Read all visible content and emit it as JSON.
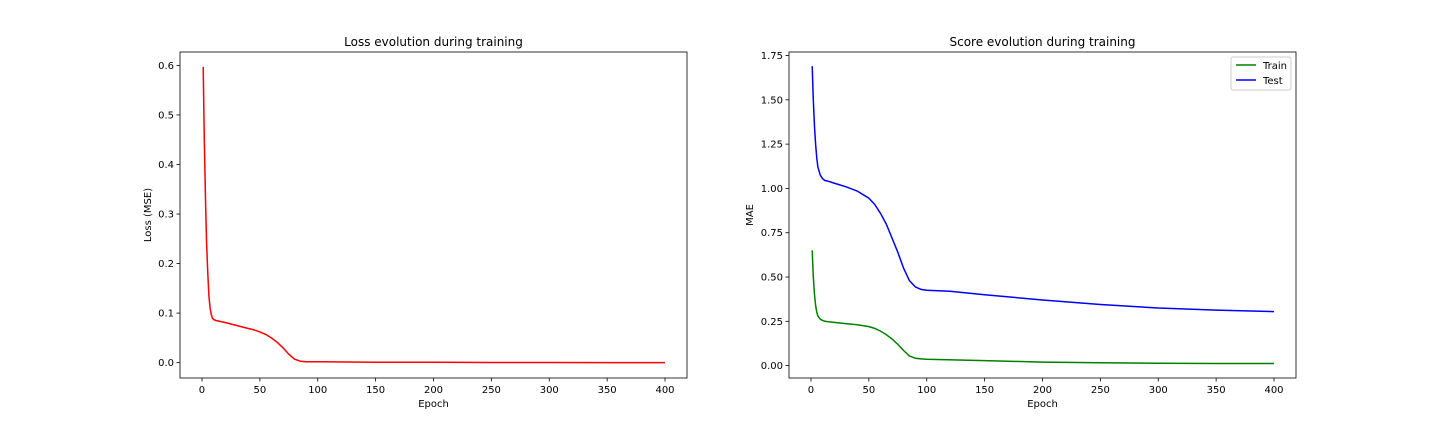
{
  "chart_data": [
    {
      "type": "line",
      "title": "Loss evolution during training",
      "xlabel": "Epoch",
      "ylabel": "Loss (MSE)",
      "xlim": [
        -19,
        419
      ],
      "ylim": [
        -0.031,
        0.627
      ],
      "xticks": [
        0,
        50,
        100,
        150,
        200,
        250,
        300,
        350,
        400
      ],
      "xtick_labels": [
        "0",
        "50",
        "100",
        "150",
        "200",
        "250",
        "300",
        "350",
        "400"
      ],
      "yticks": [
        0.0,
        0.1,
        0.2,
        0.3,
        0.4,
        0.5,
        0.6
      ],
      "ytick_labels": [
        "0.0",
        "0.1",
        "0.2",
        "0.3",
        "0.4",
        "0.5",
        "0.6"
      ],
      "grid": false,
      "legend": null,
      "series": [
        {
          "color": "#ff0000",
          "x": [
            1,
            2,
            3,
            4,
            5,
            6,
            7,
            8,
            9,
            10,
            12,
            14,
            16,
            20,
            25,
            30,
            35,
            40,
            45,
            50,
            55,
            60,
            65,
            70,
            75,
            80,
            85,
            90,
            95,
            100,
            150,
            200,
            250,
            300,
            350,
            400
          ],
          "y": [
            0.597,
            0.45,
            0.33,
            0.24,
            0.18,
            0.135,
            0.11,
            0.097,
            0.09,
            0.087,
            0.085,
            0.084,
            0.083,
            0.081,
            0.078,
            0.075,
            0.072,
            0.069,
            0.066,
            0.062,
            0.057,
            0.05,
            0.041,
            0.03,
            0.017,
            0.007,
            0.003,
            0.002,
            0.0018,
            0.0016,
            0.0009,
            0.0006,
            0.0003,
            0.0002,
            0.0001,
            0.0
          ]
        }
      ]
    },
    {
      "type": "line",
      "title": "Score evolution during training",
      "xlabel": "Epoch",
      "ylabel": "MAE",
      "xlim": [
        -19,
        419
      ],
      "ylim": [
        -0.07,
        1.77
      ],
      "xticks": [
        0,
        50,
        100,
        150,
        200,
        250,
        300,
        350,
        400
      ],
      "xtick_labels": [
        "0",
        "50",
        "100",
        "150",
        "200",
        "250",
        "300",
        "350",
        "400"
      ],
      "yticks": [
        0.0,
        0.25,
        0.5,
        0.75,
        1.0,
        1.25,
        1.5,
        1.75
      ],
      "ytick_labels": [
        "0.00",
        "0.25",
        "0.50",
        "0.75",
        "1.00",
        "1.25",
        "1.50",
        "1.75"
      ],
      "grid": false,
      "legend": "top-right",
      "series": [
        {
          "name": "Train",
          "color": "#008000",
          "x": [
            1,
            2,
            3,
            4,
            5,
            6,
            8,
            10,
            12,
            15,
            20,
            30,
            40,
            50,
            55,
            60,
            65,
            70,
            75,
            80,
            85,
            90,
            95,
            100,
            150,
            200,
            250,
            300,
            350,
            400
          ],
          "y": [
            0.65,
            0.5,
            0.4,
            0.34,
            0.3,
            0.28,
            0.262,
            0.255,
            0.25,
            0.247,
            0.244,
            0.237,
            0.23,
            0.22,
            0.21,
            0.195,
            0.175,
            0.15,
            0.12,
            0.085,
            0.055,
            0.042,
            0.038,
            0.036,
            0.028,
            0.02,
            0.016,
            0.013,
            0.012,
            0.012
          ]
        },
        {
          "name": "Test",
          "color": "#0000ff",
          "x": [
            1,
            2,
            3,
            4,
            5,
            6,
            8,
            10,
            12,
            15,
            20,
            30,
            40,
            50,
            55,
            60,
            65,
            70,
            75,
            80,
            85,
            90,
            95,
            100,
            120,
            150,
            200,
            250,
            300,
            350,
            400
          ],
          "y": [
            1.69,
            1.5,
            1.35,
            1.25,
            1.17,
            1.12,
            1.075,
            1.055,
            1.045,
            1.04,
            1.03,
            1.01,
            0.985,
            0.945,
            0.91,
            0.86,
            0.8,
            0.72,
            0.64,
            0.55,
            0.48,
            0.445,
            0.43,
            0.425,
            0.42,
            0.4,
            0.37,
            0.345,
            0.325,
            0.313,
            0.305
          ]
        }
      ]
    }
  ]
}
